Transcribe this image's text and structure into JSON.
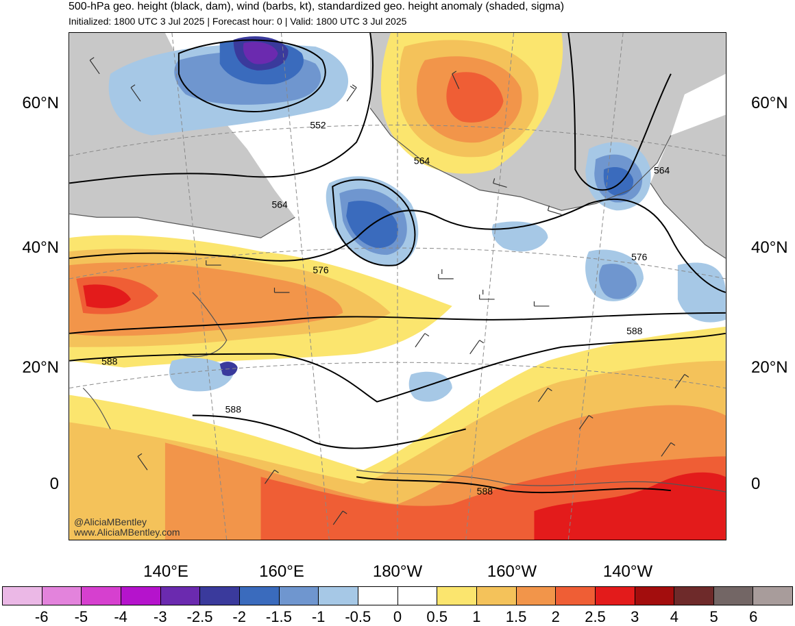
{
  "header": {
    "title": "500-hPa geo. height (black, dam), wind (barbs, kt), standardized geo. height anomaly (shaded, sigma)",
    "subtitle": "Initialized: 1800 UTC 3 Jul 2025 | Forecast hour: 0 | Valid: 1800 UTC 3 Jul 2025"
  },
  "map": {
    "lat_labels": [
      "60°N",
      "40°N",
      "20°N",
      "0"
    ],
    "lon_labels": [
      "140°E",
      "160°E",
      "180°W",
      "160°W",
      "140°W"
    ],
    "contour_labels": [
      "552",
      "564",
      "564",
      "564",
      "576",
      "576",
      "588",
      "588",
      "588",
      "588"
    ],
    "credits": [
      "@AliciaMBentley",
      "www.AliciaMBentley.com"
    ],
    "colors": {
      "land": "#c8c8c8",
      "coast": "#555555",
      "contour": "#000000",
      "barb": "#333333"
    }
  },
  "colorbar": {
    "colors": [
      "#ebb8e6",
      "#e383dc",
      "#d640cf",
      "#b513cc",
      "#6b2aaf",
      "#3a3a9c",
      "#3a6bbd",
      "#6f96cf",
      "#a6c8e6",
      "#ffffff",
      "#ffffff",
      "#fbe56e",
      "#f4c25a",
      "#f2954a",
      "#ef5e35",
      "#e31b1b",
      "#a30d0d",
      "#6e2a2a",
      "#736665",
      "#a89c9b"
    ],
    "tick_labels": [
      "-6",
      "-5",
      "-4",
      "-3",
      "-2.5",
      "-2",
      "-1.5",
      "-1",
      "-0.5",
      "0",
      "0.5",
      "1",
      "1.5",
      "2",
      "2.5",
      "3",
      "4",
      "5",
      "6"
    ]
  }
}
